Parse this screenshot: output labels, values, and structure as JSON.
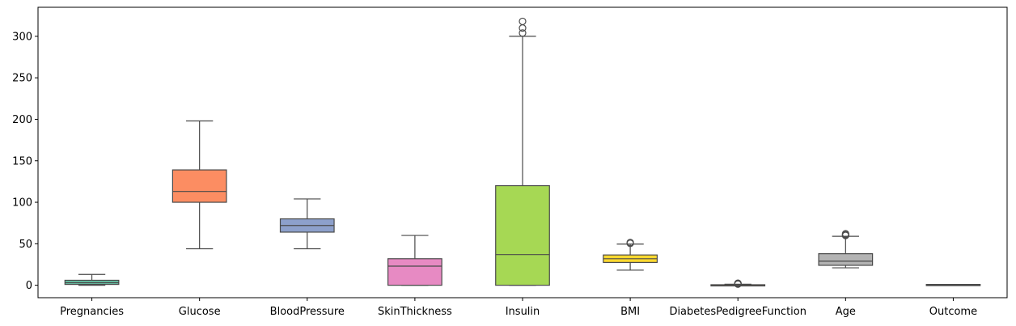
{
  "chart_data": {
    "type": "box",
    "title": "",
    "xlabel": "",
    "ylabel": "",
    "ylim": [
      -15,
      335
    ],
    "yticks": [
      0,
      50,
      100,
      150,
      200,
      250,
      300
    ],
    "grid": false,
    "series": [
      {
        "name": "Pregnancies",
        "color": "#66c2a5",
        "q1": 1,
        "median": 3,
        "q3": 6,
        "whislo": 0,
        "whishi": 13,
        "fliers": []
      },
      {
        "name": "Glucose",
        "color": "#fc8d62",
        "q1": 100,
        "median": 113,
        "q3": 139,
        "whislo": 44,
        "whishi": 198,
        "fliers": []
      },
      {
        "name": "BloodPressure",
        "color": "#8da0cb",
        "q1": 64,
        "median": 72,
        "q3": 80,
        "whislo": 44,
        "whishi": 104,
        "fliers": []
      },
      {
        "name": "SkinThickness",
        "color": "#e78ac3",
        "q1": 0,
        "median": 23,
        "q3": 32,
        "whislo": 0,
        "whishi": 60,
        "fliers": []
      },
      {
        "name": "Insulin",
        "color": "#a6d854",
        "q1": 0,
        "median": 37,
        "q3": 120,
        "whislo": 0,
        "whishi": 300,
        "fliers": [
          304,
          310,
          318
        ]
      },
      {
        "name": "BMI",
        "color": "#ffd92f",
        "q1": 27.5,
        "median": 32,
        "q3": 36.5,
        "whislo": 18.2,
        "whishi": 49.6,
        "fliers": [
          50.5,
          51.5
        ]
      },
      {
        "name": "DiabetesPedigreeFunction",
        "color": "#e5c494",
        "q1": 0.24,
        "median": 0.37,
        "q3": 0.63,
        "whislo": 0.08,
        "whishi": 1.2,
        "fliers": [
          1.3,
          1.8,
          2.4
        ]
      },
      {
        "name": "Age",
        "color": "#b3b3b3",
        "q1": 24,
        "median": 29,
        "q3": 38,
        "whislo": 21,
        "whishi": 59,
        "fliers": [
          60,
          61,
          62
        ]
      },
      {
        "name": "Outcome",
        "color": "#66c2a5",
        "q1": 0,
        "median": 0,
        "q3": 1,
        "whislo": 0,
        "whishi": 1,
        "fliers": []
      }
    ]
  }
}
